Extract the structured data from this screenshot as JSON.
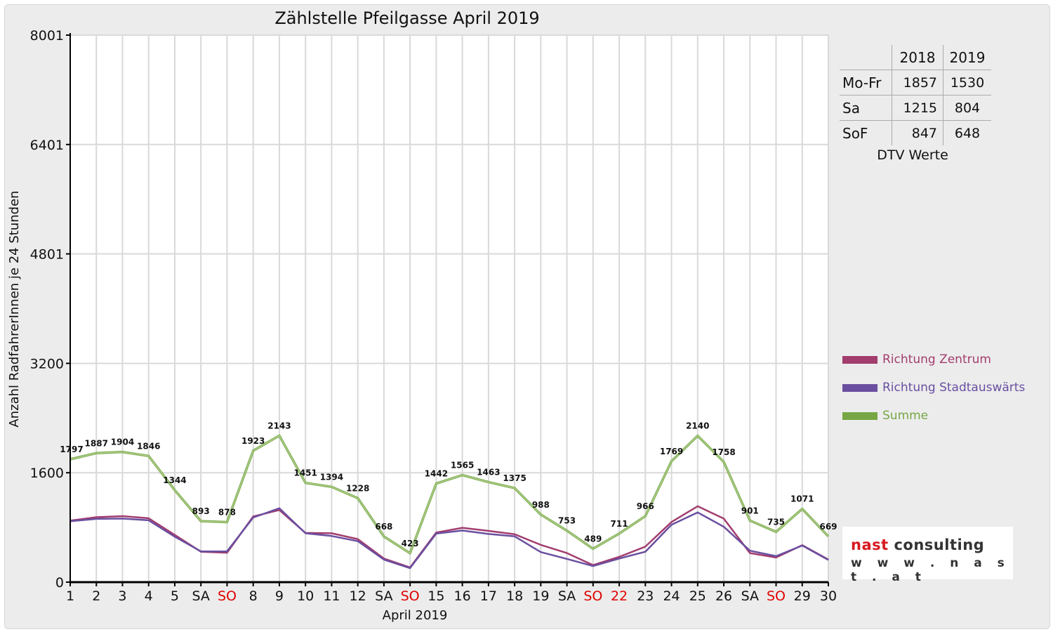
{
  "title": "Zählstelle Pfeilgasse April 2019",
  "colors": {
    "zentrum": "#a23d6e",
    "stadtauswaerts": "#6a4fa0",
    "summe": "#77a645",
    "weekend_red": "#e00000"
  },
  "dtv_table": {
    "headers": [
      "2018",
      "2019"
    ],
    "rows": [
      {
        "label": "Mo-Fr",
        "v2018": "1857",
        "v2019": "1530"
      },
      {
        "label": "Sa",
        "v2018": "1215",
        "v2019": "804"
      },
      {
        "label": "SoF",
        "v2018": "847",
        "v2019": "648"
      }
    ],
    "caption": "DTV Werte"
  },
  "logo": {
    "brand1": "nast",
    "brand2": " consulting",
    "url": "w w w . n a s t . a t"
  },
  "chart_data": {
    "type": "line",
    "title": "Zählstelle Pfeilgasse April 2019",
    "xlabel": "April 2019",
    "ylabel": "Anzahl RadfahrerInnen je 24 Stunden",
    "ylim": [
      0,
      8001
    ],
    "yticks": [
      "0",
      "1600",
      "3200",
      "4801",
      "6401",
      "8001"
    ],
    "ytick_values": [
      0,
      1600,
      3200,
      4801,
      6401,
      8001
    ],
    "grid": true,
    "legend_position": "right",
    "categories": [
      "1",
      "2",
      "3",
      "4",
      "5",
      "SA",
      "SO",
      "8",
      "9",
      "10",
      "11",
      "12",
      "SA",
      "SO",
      "15",
      "16",
      "17",
      "18",
      "19",
      "SA",
      "SO",
      "22",
      "23",
      "24",
      "25",
      "26",
      "SA",
      "SO",
      "29",
      "30"
    ],
    "red_categories": [
      6,
      13,
      20,
      21,
      27
    ],
    "series": [
      {
        "name": "Richtung Zentrum",
        "color": "#a23d6e",
        "values": [
          900,
          950,
          965,
          935,
          690,
          445,
          430,
          960,
          1055,
          720,
          715,
          630,
          345,
          215,
          725,
          795,
          750,
          700,
          545,
          425,
          250,
          370,
          520,
          880,
          1110,
          930,
          425,
          360,
          540,
          330
        ]
      },
      {
        "name": "Richtung Stadtauswärts",
        "color": "#6a4fa0",
        "values": [
          890,
          925,
          930,
          905,
          665,
          450,
          450,
          945,
          1080,
          715,
          675,
          600,
          330,
          205,
          710,
          755,
          705,
          670,
          440,
          340,
          235,
          345,
          445,
          840,
          1020,
          810,
          460,
          380,
          535,
          325
        ]
      },
      {
        "name": "Summe",
        "color": "#77a645",
        "values": [
          1797,
          1887,
          1904,
          1846,
          1344,
          893,
          878,
          1923,
          2143,
          1451,
          1394,
          1228,
          668,
          423,
          1442,
          1565,
          1463,
          1375,
          988,
          753,
          489,
          711,
          966,
          1769,
          2140,
          1758,
          901,
          735,
          1071,
          669
        ],
        "labels": [
          "1797",
          "1887",
          "1904",
          "1846",
          "1344",
          "893",
          "878",
          "1923",
          "2143",
          "1451",
          "1394",
          "1228",
          "668",
          "423",
          "1442",
          "1565",
          "1463",
          "1375",
          "988",
          "753",
          "489",
          "711",
          "966",
          "1769",
          "2140",
          "1758",
          "901",
          "735",
          "1071",
          "669"
        ]
      }
    ]
  }
}
